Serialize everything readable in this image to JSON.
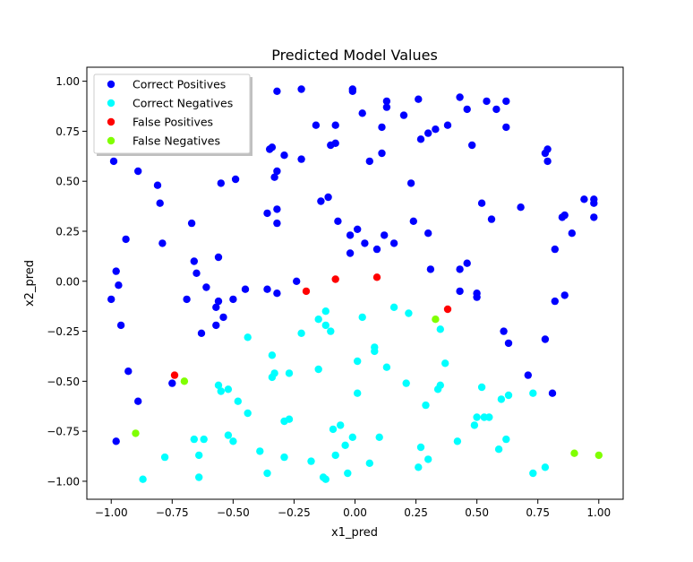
{
  "chart_data": {
    "type": "scatter",
    "title": "Predicted Model Values",
    "xlabel": "x1_pred",
    "ylabel": "x2_pred",
    "xlim": [
      -1.1,
      1.1
    ],
    "ylim": [
      -1.09,
      1.07
    ],
    "xticks": [
      {
        "v": -1.0,
        "label": "−1.00"
      },
      {
        "v": -0.75,
        "label": "−0.75"
      },
      {
        "v": -0.5,
        "label": "−0.50"
      },
      {
        "v": -0.25,
        "label": "−0.25"
      },
      {
        "v": 0.0,
        "label": "0.00"
      },
      {
        "v": 0.25,
        "label": "0.25"
      },
      {
        "v": 0.5,
        "label": "0.50"
      },
      {
        "v": 0.75,
        "label": "0.75"
      },
      {
        "v": 1.0,
        "label": "1.00"
      }
    ],
    "yticks": [
      {
        "v": -1.0,
        "label": "−1.00"
      },
      {
        "v": -0.75,
        "label": "−0.75"
      },
      {
        "v": -0.5,
        "label": "−0.50"
      },
      {
        "v": -0.25,
        "label": "−0.25"
      },
      {
        "v": 0.0,
        "label": "0.00"
      },
      {
        "v": 0.25,
        "label": "0.25"
      },
      {
        "v": 0.5,
        "label": "0.50"
      },
      {
        "v": 0.75,
        "label": "0.75"
      },
      {
        "v": 1.0,
        "label": "1.00"
      }
    ],
    "grid": false,
    "legend_position": "upper-left",
    "series": [
      {
        "name": "Correct Positives",
        "color": "#0000ff",
        "points": [
          [
            -0.99,
            0.6
          ],
          [
            -0.89,
            0.55
          ],
          [
            -0.81,
            0.48
          ],
          [
            -0.8,
            0.39
          ],
          [
            -0.79,
            0.19
          ],
          [
            -0.94,
            0.21
          ],
          [
            -0.98,
            0.05
          ],
          [
            -0.97,
            -0.02
          ],
          [
            -1.0,
            -0.09
          ],
          [
            -0.96,
            -0.22
          ],
          [
            -0.93,
            -0.45
          ],
          [
            -0.89,
            -0.6
          ],
          [
            -0.98,
            -0.8
          ],
          [
            -0.75,
            -0.51
          ],
          [
            -0.67,
            0.29
          ],
          [
            -0.66,
            0.1
          ],
          [
            -0.65,
            0.04
          ],
          [
            -0.61,
            -0.03
          ],
          [
            -0.69,
            -0.09
          ],
          [
            -0.63,
            -0.26
          ],
          [
            -0.56,
            0.12
          ],
          [
            -0.55,
            0.49
          ],
          [
            -0.49,
            0.51
          ],
          [
            -0.57,
            -0.13
          ],
          [
            -0.56,
            -0.1
          ],
          [
            -0.54,
            -0.18
          ],
          [
            -0.57,
            -0.22
          ],
          [
            -0.5,
            -0.09
          ],
          [
            -0.45,
            -0.04
          ],
          [
            -0.36,
            0.34
          ],
          [
            -0.32,
            0.36
          ],
          [
            -0.32,
            0.29
          ],
          [
            -0.33,
            0.52
          ],
          [
            -0.32,
            0.55
          ],
          [
            -0.35,
            0.66
          ],
          [
            -0.34,
            0.67
          ],
          [
            -0.32,
            0.95
          ],
          [
            -0.29,
            0.63
          ],
          [
            -0.22,
            0.96
          ],
          [
            -0.22,
            0.61
          ],
          [
            -0.16,
            0.78
          ],
          [
            -0.14,
            0.4
          ],
          [
            -0.11,
            0.42
          ],
          [
            -0.1,
            0.68
          ],
          [
            -0.08,
            0.69
          ],
          [
            -0.08,
            0.78
          ],
          [
            -0.07,
            0.3
          ],
          [
            -0.36,
            -0.04
          ],
          [
            -0.32,
            -0.06
          ],
          [
            -0.24,
            0.0
          ],
          [
            -0.02,
            0.14
          ],
          [
            -0.02,
            0.23
          ],
          [
            0.01,
            0.26
          ],
          [
            0.04,
            0.19
          ],
          [
            -0.01,
            0.96
          ],
          [
            -0.01,
            0.95
          ],
          [
            0.03,
            0.84
          ],
          [
            0.06,
            0.6
          ],
          [
            0.11,
            0.64
          ],
          [
            0.11,
            0.77
          ],
          [
            0.12,
            0.23
          ],
          [
            0.09,
            0.16
          ],
          [
            0.16,
            0.19
          ],
          [
            0.13,
            0.9
          ],
          [
            0.13,
            0.87
          ],
          [
            0.2,
            0.83
          ],
          [
            0.26,
            0.91
          ],
          [
            0.27,
            0.71
          ],
          [
            0.3,
            0.74
          ],
          [
            0.33,
            0.76
          ],
          [
            0.23,
            0.49
          ],
          [
            0.24,
            0.3
          ],
          [
            0.3,
            0.24
          ],
          [
            0.31,
            0.06
          ],
          [
            0.38,
            0.78
          ],
          [
            0.43,
            0.92
          ],
          [
            0.46,
            0.86
          ],
          [
            0.48,
            0.68
          ],
          [
            0.43,
            0.06
          ],
          [
            0.46,
            0.09
          ],
          [
            0.43,
            -0.05
          ],
          [
            0.5,
            -0.06
          ],
          [
            0.5,
            -0.08
          ],
          [
            0.52,
            0.39
          ],
          [
            0.56,
            0.31
          ],
          [
            0.54,
            0.9
          ],
          [
            0.58,
            0.86
          ],
          [
            0.62,
            0.9
          ],
          [
            0.62,
            0.77
          ],
          [
            0.68,
            0.37
          ],
          [
            0.61,
            -0.25
          ],
          [
            0.63,
            -0.31
          ],
          [
            0.71,
            -0.47
          ],
          [
            0.78,
            -0.29
          ],
          [
            0.78,
            0.64
          ],
          [
            0.79,
            0.66
          ],
          [
            0.79,
            0.6
          ],
          [
            0.81,
            -0.56
          ],
          [
            0.82,
            -0.1
          ],
          [
            0.82,
            0.16
          ],
          [
            0.85,
            0.32
          ],
          [
            0.86,
            0.33
          ],
          [
            0.86,
            -0.07
          ],
          [
            0.89,
            0.24
          ],
          [
            0.94,
            0.41
          ],
          [
            0.98,
            0.41
          ],
          [
            0.98,
            0.39
          ],
          [
            0.98,
            0.32
          ]
        ]
      },
      {
        "name": "Correct Negatives",
        "color": "#00ffff",
        "points": [
          [
            -0.87,
            -0.99
          ],
          [
            -0.78,
            -0.88
          ],
          [
            -0.66,
            -0.79
          ],
          [
            -0.64,
            -0.87
          ],
          [
            -0.64,
            -0.98
          ],
          [
            -0.62,
            -0.79
          ],
          [
            -0.56,
            -0.52
          ],
          [
            -0.55,
            -0.55
          ],
          [
            -0.52,
            -0.54
          ],
          [
            -0.52,
            -0.77
          ],
          [
            -0.5,
            -0.8
          ],
          [
            -0.48,
            -0.6
          ],
          [
            -0.44,
            -0.66
          ],
          [
            -0.44,
            -0.28
          ],
          [
            -0.39,
            -0.85
          ],
          [
            -0.36,
            -0.96
          ],
          [
            -0.34,
            -0.37
          ],
          [
            -0.34,
            -0.48
          ],
          [
            -0.33,
            -0.46
          ],
          [
            -0.29,
            -0.88
          ],
          [
            -0.29,
            -0.7
          ],
          [
            -0.27,
            -0.69
          ],
          [
            -0.27,
            -0.46
          ],
          [
            -0.22,
            -0.26
          ],
          [
            -0.18,
            -0.9
          ],
          [
            -0.15,
            -0.19
          ],
          [
            -0.15,
            -0.44
          ],
          [
            -0.13,
            -0.98
          ],
          [
            -0.12,
            -0.99
          ],
          [
            -0.12,
            -0.15
          ],
          [
            -0.12,
            -0.22
          ],
          [
            -0.1,
            -0.25
          ],
          [
            -0.09,
            -0.74
          ],
          [
            -0.08,
            -0.87
          ],
          [
            -0.06,
            -0.72
          ],
          [
            -0.04,
            -0.82
          ],
          [
            -0.03,
            -0.96
          ],
          [
            -0.01,
            -0.78
          ],
          [
            0.01,
            -0.4
          ],
          [
            0.01,
            -0.56
          ],
          [
            0.03,
            -0.18
          ],
          [
            0.06,
            -0.91
          ],
          [
            0.08,
            -0.33
          ],
          [
            0.08,
            -0.35
          ],
          [
            0.1,
            -0.78
          ],
          [
            0.13,
            -0.43
          ],
          [
            0.16,
            -0.13
          ],
          [
            0.21,
            -0.51
          ],
          [
            0.22,
            -0.16
          ],
          [
            0.26,
            -0.93
          ],
          [
            0.27,
            -0.83
          ],
          [
            0.29,
            -0.62
          ],
          [
            0.3,
            -0.89
          ],
          [
            0.34,
            -0.54
          ],
          [
            0.35,
            -0.52
          ],
          [
            0.35,
            -0.24
          ],
          [
            0.37,
            -0.41
          ],
          [
            0.42,
            -0.8
          ],
          [
            0.49,
            -0.72
          ],
          [
            0.5,
            -0.68
          ],
          [
            0.52,
            -0.53
          ],
          [
            0.53,
            -0.68
          ],
          [
            0.55,
            -0.68
          ],
          [
            0.59,
            -0.84
          ],
          [
            0.6,
            -0.59
          ],
          [
            0.62,
            -0.79
          ],
          [
            0.63,
            -0.57
          ],
          [
            0.73,
            -0.56
          ],
          [
            0.73,
            -0.96
          ],
          [
            0.78,
            -0.93
          ]
        ]
      },
      {
        "name": "False Positives",
        "color": "#ff0000",
        "points": [
          [
            -0.74,
            -0.47
          ],
          [
            -0.2,
            -0.05
          ],
          [
            -0.08,
            0.01
          ],
          [
            0.09,
            0.02
          ],
          [
            0.38,
            -0.14
          ]
        ]
      },
      {
        "name": "False Negatives",
        "color": "#80ff00",
        "points": [
          [
            -0.9,
            -0.76
          ],
          [
            -0.7,
            -0.5
          ],
          [
            0.33,
            -0.19
          ],
          [
            0.9,
            -0.86
          ],
          [
            1.0,
            -0.87
          ]
        ]
      }
    ]
  }
}
